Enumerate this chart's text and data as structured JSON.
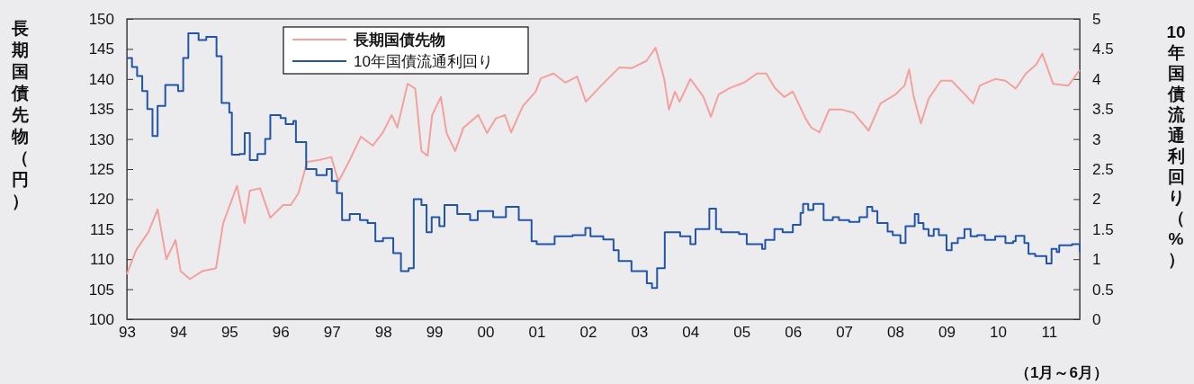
{
  "chart_data": {
    "type": "line",
    "ylabel": "長期国債先物（円）",
    "y2label": "10年国債流通利回り（%）",
    "annotations": [
      "（1月～6月）"
    ],
    "xlim": [
      1993,
      2011.6
    ],
    "xticks": [
      {
        "value": 1993,
        "label": "93"
      },
      {
        "value": 1994,
        "label": "94"
      },
      {
        "value": 1995,
        "label": "95"
      },
      {
        "value": 1996,
        "label": "96"
      },
      {
        "value": 1997,
        "label": "97"
      },
      {
        "value": 1998,
        "label": "98"
      },
      {
        "value": 1999,
        "label": "99"
      },
      {
        "value": 2000,
        "label": "00"
      },
      {
        "value": 2001,
        "label": "01"
      },
      {
        "value": 2002,
        "label": "02"
      },
      {
        "value": 2003,
        "label": "03"
      },
      {
        "value": 2004,
        "label": "04"
      },
      {
        "value": 2005,
        "label": "05"
      },
      {
        "value": 2006,
        "label": "06"
      },
      {
        "value": 2007,
        "label": "07"
      },
      {
        "value": 2008,
        "label": "08"
      },
      {
        "value": 2009,
        "label": "09"
      },
      {
        "value": 2010,
        "label": "10"
      },
      {
        "value": 2011,
        "label": "11"
      }
    ],
    "ylim": [
      100,
      150
    ],
    "yticks": [
      100,
      105,
      110,
      115,
      120,
      125,
      130,
      135,
      140,
      145,
      150
    ],
    "y2lim": [
      0,
      5
    ],
    "y2ticks": [
      0,
      0.5,
      1,
      1.5,
      2,
      2.5,
      3,
      3.5,
      4,
      4.5,
      5
    ],
    "legend": "top left",
    "grid": false,
    "series": [
      {
        "name": "長期国債先物",
        "color": "#f4a09c",
        "x": [
          1993.0,
          1993.18,
          1993.42,
          1993.6,
          1993.77,
          1993.95,
          1994.05,
          1994.23,
          1994.47,
          1994.74,
          1994.88,
          1995.15,
          1995.3,
          1995.4,
          1995.6,
          1995.8,
          1996.05,
          1996.2,
          1996.35,
          1996.52,
          1996.75,
          1996.99,
          1997.13,
          1997.35,
          1997.57,
          1997.8,
          1997.99,
          1998.17,
          1998.28,
          1998.48,
          1998.63,
          1998.75,
          1998.87,
          1998.96,
          1999.13,
          1999.24,
          1999.41,
          1999.57,
          1999.86,
          2000.03,
          2000.2,
          2000.38,
          2000.5,
          2000.73,
          2000.98,
          2001.08,
          2001.33,
          2001.56,
          2001.79,
          2001.96,
          2002.26,
          2002.61,
          2002.85,
          2003.14,
          2003.32,
          2003.49,
          2003.58,
          2003.7,
          2003.79,
          2004.0,
          2004.25,
          2004.4,
          2004.55,
          2004.77,
          2005.05,
          2005.3,
          2005.48,
          2005.65,
          2005.83,
          2006.0,
          2006.25,
          2006.36,
          2006.52,
          2006.71,
          2006.95,
          2007.18,
          2007.48,
          2007.71,
          2008.0,
          2008.18,
          2008.27,
          2008.36,
          2008.5,
          2008.65,
          2008.89,
          2009.1,
          2009.36,
          2009.52,
          2009.65,
          2009.95,
          2010.15,
          2010.35,
          2010.55,
          2010.75,
          2010.87,
          2011.08,
          2011.38,
          2011.6
        ],
        "values": [
          107.5,
          111.5,
          114.5,
          118.3,
          110.0,
          113.2,
          108,
          106.7,
          108,
          108.5,
          116,
          122.2,
          116,
          121.4,
          121.8,
          116.9,
          119,
          119,
          121,
          126.2,
          126.5,
          127,
          122.9,
          126.5,
          130.4,
          128.9,
          131,
          134,
          131.9,
          139.2,
          138.4,
          128,
          127.2,
          134,
          137,
          131,
          128,
          131.9,
          134,
          131,
          133.4,
          134,
          131.1,
          135.5,
          137.9,
          140.1,
          140.9,
          139.4,
          140.4,
          136.2,
          138.9,
          141.9,
          141.8,
          143,
          145.2,
          140,
          134.9,
          137.9,
          136.2,
          140,
          137.1,
          133.7,
          137.4,
          138.5,
          139.4,
          140.9,
          140.9,
          138.5,
          137,
          137.9,
          133.4,
          131.9,
          131.1,
          134.9,
          134.9,
          134.4,
          131.4,
          135.9,
          137.4,
          138.9,
          141.6,
          137,
          132.6,
          136.7,
          139.7,
          139.7,
          137.4,
          135.9,
          138.9,
          140,
          139.7,
          138.4,
          140.9,
          142.4,
          144.2,
          139.2,
          138.9,
          141.5
        ]
      },
      {
        "name": "10年国債流通利回り",
        "color": "#2255a8",
        "type": "step",
        "axis": "y2",
        "x": [
          1993.0,
          1993.1,
          1993.2,
          1993.3,
          1993.4,
          1993.5,
          1993.6,
          1993.75,
          1993.9,
          1994.0,
          1994.1,
          1994.2,
          1994.4,
          1994.55,
          1994.75,
          1994.85,
          1995.0,
          1995.05,
          1995.2,
          1995.3,
          1995.4,
          1995.55,
          1995.7,
          1995.8,
          1996.0,
          1996.1,
          1996.25,
          1996.3,
          1996.5,
          1996.7,
          1996.9,
          1997.0,
          1997.1,
          1997.2,
          1997.35,
          1997.55,
          1997.7,
          1997.85,
          1998.0,
          1998.2,
          1998.35,
          1998.5,
          1998.6,
          1998.75,
          1998.85,
          1998.95,
          1999.1,
          1999.2,
          1999.45,
          1999.7,
          1999.85,
          2000.15,
          2000.4,
          2000.65,
          2000.9,
          2001.0,
          2001.35,
          2001.7,
          2001.95,
          2002.05,
          2002.3,
          2002.5,
          2002.6,
          2002.85,
          2003.15,
          2003.25,
          2003.35,
          2003.5,
          2003.65,
          2003.8,
          2004.0,
          2004.1,
          2004.2,
          2004.37,
          2004.5,
          2004.6,
          2004.95,
          2005.1,
          2005.4,
          2005.46,
          2005.64,
          2005.8,
          2006.0,
          2006.15,
          2006.2,
          2006.3,
          2006.4,
          2006.6,
          2006.78,
          2006.9,
          2007.1,
          2007.3,
          2007.45,
          2007.55,
          2007.65,
          2007.85,
          2007.95,
          2008.1,
          2008.2,
          2008.38,
          2008.45,
          2008.55,
          2008.65,
          2008.75,
          2008.85,
          2009.0,
          2009.1,
          2009.22,
          2009.35,
          2009.47,
          2009.6,
          2009.75,
          2009.95,
          2010.15,
          2010.3,
          2010.35,
          2010.52,
          2010.6,
          2010.73,
          2010.95,
          2011.05,
          2011.15,
          2011.2,
          2011.45,
          2011.6
        ],
        "values": [
          4.35,
          4.2,
          4.05,
          3.8,
          3.5,
          3.05,
          3.55,
          3.9,
          3.9,
          3.8,
          4.35,
          4.76,
          4.65,
          4.7,
          4.38,
          3.6,
          3.44,
          2.74,
          2.75,
          3.1,
          2.65,
          2.75,
          3.0,
          3.4,
          3.35,
          3.25,
          3.3,
          2.95,
          2.5,
          2.4,
          2.5,
          2.3,
          2.1,
          1.65,
          1.75,
          1.65,
          1.6,
          1.3,
          1.35,
          1.1,
          0.8,
          0.85,
          2.0,
          1.9,
          1.45,
          1.7,
          1.55,
          1.9,
          1.75,
          1.65,
          1.8,
          1.7,
          1.87,
          1.65,
          1.3,
          1.25,
          1.38,
          1.4,
          1.52,
          1.38,
          1.33,
          1.15,
          0.97,
          0.8,
          0.6,
          0.52,
          0.85,
          1.45,
          1.45,
          1.38,
          1.25,
          1.5,
          1.5,
          1.84,
          1.5,
          1.45,
          1.42,
          1.25,
          1.17,
          1.32,
          1.5,
          1.45,
          1.57,
          1.77,
          1.92,
          1.82,
          1.92,
          1.65,
          1.7,
          1.65,
          1.62,
          1.7,
          1.87,
          1.8,
          1.6,
          1.46,
          1.4,
          1.27,
          1.55,
          1.75,
          1.6,
          1.5,
          1.39,
          1.5,
          1.4,
          1.15,
          1.27,
          1.35,
          1.5,
          1.38,
          1.4,
          1.32,
          1.38,
          1.27,
          1.3,
          1.39,
          1.27,
          1.09,
          1.05,
          0.93,
          1.17,
          1.12,
          1.23,
          1.25,
          1.12
        ]
      }
    ]
  }
}
